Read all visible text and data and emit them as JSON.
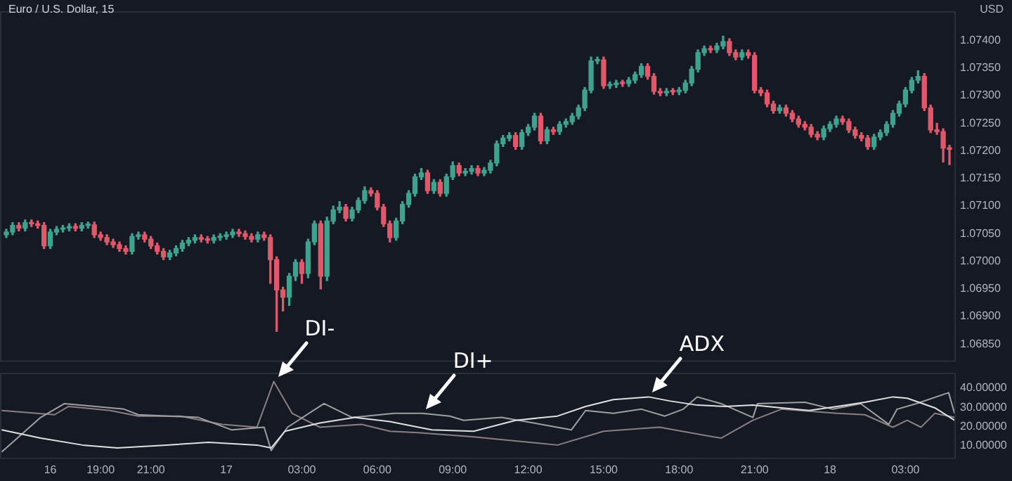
{
  "chart_data": [
    {
      "type": "candlestick",
      "title": "Euro / U.S. Dollar, 15",
      "ylabel": "USD",
      "tick_labels": "y",
      "xlim": [
        "--06-16T15:00",
        "--06-18T05:00"
      ],
      "ylim": [
        1.06818,
        1.07453
      ],
      "yticks": [
        {
          "value": 1.0685,
          "label": "1.06850"
        },
        {
          "value": 1.069,
          "label": "1.06900"
        },
        {
          "value": 1.0695,
          "label": "1.06950"
        },
        {
          "value": 1.07,
          "label": "1.07000"
        },
        {
          "value": 1.0705,
          "label": "1.07050"
        },
        {
          "value": 1.071,
          "label": "1.07100"
        },
        {
          "value": 1.0715,
          "label": "1.07150"
        },
        {
          "value": 1.072,
          "label": "1.07200"
        },
        {
          "value": 1.0725,
          "label": "1.07250"
        },
        {
          "value": 1.073,
          "label": "1.07300"
        },
        {
          "value": 1.0735,
          "label": "1.07350"
        },
        {
          "value": 1.074,
          "label": "1.07400"
        }
      ],
      "x": [
        "--06-16T15:15",
        "--06-16T15:30",
        "--06-16T15:45",
        "--06-16T16:00",
        "--06-16T16:15",
        "--06-16T16:30",
        "--06-16T16:45",
        "--06-16T17:00",
        "--06-16T17:15",
        "--06-16T17:30",
        "--06-16T17:45",
        "--06-16T18:00",
        "--06-16T18:15",
        "--06-16T18:30",
        "--06-16T18:45",
        "--06-16T19:00",
        "--06-16T19:15",
        "--06-16T19:30",
        "--06-16T19:45",
        "--06-16T20:00",
        "--06-16T20:15",
        "--06-16T20:30",
        "--06-16T20:45",
        "--06-16T21:00",
        "--06-16T21:15",
        "--06-16T21:30",
        "--06-16T21:45",
        "--06-16T22:00",
        "--06-16T22:15",
        "--06-16T22:30",
        "--06-16T22:45",
        "--06-16T23:00",
        "--06-16T23:15",
        "--06-16T23:30",
        "--06-16T23:45",
        "--06-17T00:00",
        "--06-17T00:15",
        "--06-17T00:30",
        "--06-17T00:45",
        "--06-17T01:00",
        "--06-17T01:15",
        "--06-17T01:30",
        "--06-17T01:45",
        "--06-17T02:00",
        "--06-17T02:15",
        "--06-17T02:30",
        "--06-17T02:45",
        "--06-17T03:00",
        "--06-17T03:15",
        "--06-17T03:30",
        "--06-17T03:45",
        "--06-17T04:00",
        "--06-17T04:15",
        "--06-17T04:30",
        "--06-17T04:45",
        "--06-17T05:00",
        "--06-17T05:15",
        "--06-17T05:30",
        "--06-17T05:45",
        "--06-17T06:00",
        "--06-17T06:15",
        "--06-17T06:30",
        "--06-17T06:45",
        "--06-17T07:00",
        "--06-17T07:15",
        "--06-17T07:30",
        "--06-17T07:45",
        "--06-17T08:00",
        "--06-17T08:15",
        "--06-17T08:30",
        "--06-17T08:45",
        "--06-17T09:00",
        "--06-17T09:15",
        "--06-17T09:30",
        "--06-17T09:45",
        "--06-17T10:00",
        "--06-17T10:15",
        "--06-17T10:30",
        "--06-17T10:45",
        "--06-17T11:00",
        "--06-17T11:15",
        "--06-17T11:30",
        "--06-17T11:45",
        "--06-17T12:00",
        "--06-17T12:15",
        "--06-17T12:30",
        "--06-17T12:45",
        "--06-17T13:00",
        "--06-17T13:15",
        "--06-17T13:30",
        "--06-17T13:45",
        "--06-17T14:00",
        "--06-17T14:15",
        "--06-17T14:30",
        "--06-17T14:45",
        "--06-17T15:00",
        "--06-17T15:15",
        "--06-17T15:30",
        "--06-17T15:45",
        "--06-17T16:00",
        "--06-17T16:15",
        "--06-17T16:30",
        "--06-17T16:45",
        "--06-17T17:00",
        "--06-17T17:15",
        "--06-17T17:30",
        "--06-17T17:45",
        "--06-17T18:00",
        "--06-17T18:15",
        "--06-17T18:30",
        "--06-17T18:45",
        "--06-17T19:00",
        "--06-17T19:15",
        "--06-17T19:30",
        "--06-17T19:45",
        "--06-17T20:00",
        "--06-17T20:15",
        "--06-17T20:30",
        "--06-17T20:45",
        "--06-17T21:00",
        "--06-17T21:15",
        "--06-17T21:30",
        "--06-17T21:45",
        "--06-17T22:00",
        "--06-17T22:15",
        "--06-17T22:30",
        "--06-17T22:45",
        "--06-17T23:00",
        "--06-17T23:15",
        "--06-17T23:30",
        "--06-17T23:45",
        "--06-18T00:00",
        "--06-18T00:15",
        "--06-18T00:30",
        "--06-18T00:45",
        "--06-18T01:00",
        "--06-18T01:15",
        "--06-18T01:30",
        "--06-18T01:45",
        "--06-18T02:00",
        "--06-18T02:15",
        "--06-18T02:30",
        "--06-18T02:45",
        "--06-18T03:00",
        "--06-18T03:15",
        "--06-18T03:30",
        "--06-18T03:45",
        "--06-18T04:00",
        "--06-18T04:15",
        "--06-18T04:30",
        "--06-18T04:45"
      ],
      "ohlc": [
        [
          1.07048,
          1.07058,
          1.07043,
          1.07053
        ],
        [
          1.07053,
          1.0707,
          1.07048,
          1.07065
        ],
        [
          1.07065,
          1.0707,
          1.07055,
          1.0706
        ],
        [
          1.0706,
          1.07075,
          1.07055,
          1.0707
        ],
        [
          1.0707,
          1.07075,
          1.07063,
          1.07068
        ],
        [
          1.07068,
          1.07073,
          1.0706,
          1.07065
        ],
        [
          1.07065,
          1.0707,
          1.07023,
          1.07028
        ],
        [
          1.07028,
          1.07058,
          1.07023,
          1.07053
        ],
        [
          1.07053,
          1.07063,
          1.07048,
          1.07058
        ],
        [
          1.07058,
          1.07065,
          1.07053,
          1.0706
        ],
        [
          1.0706,
          1.07068,
          1.07055,
          1.07063
        ],
        [
          1.07063,
          1.07068,
          1.07055,
          1.0706
        ],
        [
          1.0706,
          1.0707,
          1.07055,
          1.07065
        ],
        [
          1.07065,
          1.07071,
          1.0706,
          1.07066
        ],
        [
          1.07066,
          1.07071,
          1.07043,
          1.07048
        ],
        [
          1.07048,
          1.07053,
          1.07038,
          1.07043
        ],
        [
          1.07043,
          1.07048,
          1.0703,
          1.07035
        ],
        [
          1.07035,
          1.0704,
          1.07025,
          1.0703
        ],
        [
          1.0703,
          1.07035,
          1.07018,
          1.07023
        ],
        [
          1.07023,
          1.07028,
          1.07013,
          1.07018
        ],
        [
          1.07018,
          1.0705,
          1.07013,
          1.07045
        ],
        [
          1.07045,
          1.07053,
          1.0704,
          1.07048
        ],
        [
          1.07048,
          1.07053,
          1.07035,
          1.0704
        ],
        [
          1.0704,
          1.07045,
          1.07023,
          1.07028
        ],
        [
          1.07028,
          1.07033,
          1.07013,
          1.07018
        ],
        [
          1.07018,
          1.07023,
          1.07003,
          1.07008
        ],
        [
          1.07008,
          1.0702,
          1.07003,
          1.07015
        ],
        [
          1.07015,
          1.07028,
          1.0701,
          1.07023
        ],
        [
          1.07023,
          1.07038,
          1.07018,
          1.07033
        ],
        [
          1.07033,
          1.07043,
          1.07028,
          1.07038
        ],
        [
          1.07038,
          1.07048,
          1.07033,
          1.07043
        ],
        [
          1.07043,
          1.07048,
          1.07035,
          1.0704
        ],
        [
          1.0704,
          1.07045,
          1.07033,
          1.07038
        ],
        [
          1.07038,
          1.07048,
          1.07033,
          1.07043
        ],
        [
          1.07043,
          1.0705,
          1.07038,
          1.07045
        ],
        [
          1.07045,
          1.07053,
          1.0704,
          1.07048
        ],
        [
          1.07048,
          1.07058,
          1.07043,
          1.07053
        ],
        [
          1.07053,
          1.07058,
          1.07045,
          1.0705
        ],
        [
          1.0705,
          1.07055,
          1.0704,
          1.07045
        ],
        [
          1.07045,
          1.0705,
          1.07035,
          1.0704
        ],
        [
          1.0704,
          1.07053,
          1.07035,
          1.07048
        ],
        [
          1.07048,
          1.07053,
          1.07038,
          1.07043
        ],
        [
          1.07043,
          1.07048,
          1.0696,
          1.07003
        ],
        [
          1.07003,
          1.07008,
          1.06873,
          1.06948
        ],
        [
          1.06948,
          1.06953,
          1.0691,
          1.06935
        ],
        [
          1.06935,
          1.06978,
          1.0692,
          1.06973
        ],
        [
          1.06973,
          1.07003,
          1.06965,
          1.06998
        ],
        [
          1.06998,
          1.07003,
          1.0696,
          1.06978
        ],
        [
          1.06978,
          1.0704,
          1.0697,
          1.07035
        ],
        [
          1.07035,
          1.07073,
          1.0703,
          1.07068
        ],
        [
          1.07068,
          1.07073,
          1.0695,
          1.06973
        ],
        [
          1.06973,
          1.0708,
          1.06965,
          1.07073
        ],
        [
          1.07073,
          1.071,
          1.07068,
          1.07093
        ],
        [
          1.07093,
          1.07108,
          1.07088,
          1.07098
        ],
        [
          1.07098,
          1.07103,
          1.07073,
          1.07078
        ],
        [
          1.07078,
          1.07098,
          1.07073,
          1.07093
        ],
        [
          1.07093,
          1.07115,
          1.07088,
          1.0711
        ],
        [
          1.0711,
          1.07135,
          1.07105,
          1.07128
        ],
        [
          1.07128,
          1.07133,
          1.07118,
          1.07123
        ],
        [
          1.07123,
          1.07128,
          1.07093,
          1.07098
        ],
        [
          1.07098,
          1.07103,
          1.07063,
          1.07068
        ],
        [
          1.07068,
          1.07073,
          1.07035,
          1.07043
        ],
        [
          1.07043,
          1.07078,
          1.07038,
          1.07073
        ],
        [
          1.07073,
          1.07108,
          1.07068,
          1.07103
        ],
        [
          1.07103,
          1.07128,
          1.07098,
          1.07123
        ],
        [
          1.07123,
          1.07158,
          1.07118,
          1.07153
        ],
        [
          1.07153,
          1.07168,
          1.07148,
          1.0716
        ],
        [
          1.0716,
          1.07165,
          1.07123,
          1.07128
        ],
        [
          1.07128,
          1.07148,
          1.07123,
          1.07143
        ],
        [
          1.07143,
          1.07148,
          1.07118,
          1.07123
        ],
        [
          1.07123,
          1.07158,
          1.07118,
          1.07153
        ],
        [
          1.07153,
          1.0718,
          1.07148,
          1.07173
        ],
        [
          1.07173,
          1.07178,
          1.07155,
          1.0716
        ],
        [
          1.0716,
          1.07168,
          1.07155,
          1.07163
        ],
        [
          1.07163,
          1.07173,
          1.07158,
          1.07168
        ],
        [
          1.07168,
          1.07173,
          1.07155,
          1.0716
        ],
        [
          1.0716,
          1.0717,
          1.07155,
          1.07165
        ],
        [
          1.07165,
          1.07183,
          1.0716,
          1.07178
        ],
        [
          1.07178,
          1.07218,
          1.07173,
          1.07213
        ],
        [
          1.07213,
          1.07228,
          1.07208,
          1.07223
        ],
        [
          1.07223,
          1.07233,
          1.07218,
          1.07228
        ],
        [
          1.07228,
          1.07233,
          1.07203,
          1.07208
        ],
        [
          1.07208,
          1.07238,
          1.07203,
          1.07233
        ],
        [
          1.07233,
          1.07248,
          1.07228,
          1.07243
        ],
        [
          1.07243,
          1.07268,
          1.07238,
          1.07263
        ],
        [
          1.07263,
          1.07268,
          1.07213,
          1.07218
        ],
        [
          1.07218,
          1.07243,
          1.07213,
          1.07238
        ],
        [
          1.07238,
          1.07243,
          1.0723,
          1.07235
        ],
        [
          1.07235,
          1.07253,
          1.0723,
          1.07248
        ],
        [
          1.07248,
          1.07258,
          1.07243,
          1.07253
        ],
        [
          1.07253,
          1.07268,
          1.07248,
          1.07263
        ],
        [
          1.07263,
          1.07283,
          1.07258,
          1.07278
        ],
        [
          1.07278,
          1.07315,
          1.07273,
          1.0731
        ],
        [
          1.0731,
          1.0737,
          1.07305,
          1.07363
        ],
        [
          1.07363,
          1.0737,
          1.07358,
          1.07365
        ],
        [
          1.07365,
          1.0737,
          1.07313,
          1.07318
        ],
        [
          1.07318,
          1.07325,
          1.07313,
          1.0732
        ],
        [
          1.0732,
          1.07328,
          1.07315,
          1.07323
        ],
        [
          1.07323,
          1.07328,
          1.07317,
          1.07322
        ],
        [
          1.07322,
          1.07333,
          1.07317,
          1.07328
        ],
        [
          1.07328,
          1.07343,
          1.07323,
          1.07338
        ],
        [
          1.07338,
          1.07358,
          1.07333,
          1.07353
        ],
        [
          1.07353,
          1.07358,
          1.0733,
          1.07335
        ],
        [
          1.07335,
          1.0734,
          1.07303,
          1.07308
        ],
        [
          1.07308,
          1.07313,
          1.073,
          1.07305
        ],
        [
          1.07305,
          1.07313,
          1.073,
          1.07308
        ],
        [
          1.07308,
          1.07313,
          1.07302,
          1.07307
        ],
        [
          1.07307,
          1.07315,
          1.07302,
          1.0731
        ],
        [
          1.0731,
          1.07328,
          1.07305,
          1.07323
        ],
        [
          1.07323,
          1.07353,
          1.07318,
          1.07348
        ],
        [
          1.07348,
          1.07383,
          1.07343,
          1.07378
        ],
        [
          1.07378,
          1.0739,
          1.07373,
          1.07385
        ],
        [
          1.07385,
          1.0739,
          1.07378,
          1.07383
        ],
        [
          1.07383,
          1.07395,
          1.07378,
          1.0739
        ],
        [
          1.0739,
          1.07408,
          1.07385,
          1.07398
        ],
        [
          1.07398,
          1.07403,
          1.07373,
          1.07378
        ],
        [
          1.07378,
          1.07383,
          1.07365,
          1.0737
        ],
        [
          1.0737,
          1.07383,
          1.07365,
          1.07378
        ],
        [
          1.07378,
          1.07383,
          1.07368,
          1.07373
        ],
        [
          1.07373,
          1.07378,
          1.07305,
          1.0731
        ],
        [
          1.0731,
          1.07315,
          1.073,
          1.07305
        ],
        [
          1.07305,
          1.0731,
          1.0728,
          1.07285
        ],
        [
          1.07285,
          1.0729,
          1.07268,
          1.07273
        ],
        [
          1.07273,
          1.07283,
          1.07268,
          1.07278
        ],
        [
          1.07278,
          1.07283,
          1.07263,
          1.07268
        ],
        [
          1.07268,
          1.07273,
          1.07253,
          1.07258
        ],
        [
          1.07258,
          1.07263,
          1.07243,
          1.07248
        ],
        [
          1.07248,
          1.07253,
          1.07238,
          1.07243
        ],
        [
          1.07243,
          1.07248,
          1.07225,
          1.0723
        ],
        [
          1.0723,
          1.07235,
          1.0722,
          1.07225
        ],
        [
          1.07225,
          1.07245,
          1.0722,
          1.0724
        ],
        [
          1.0724,
          1.07253,
          1.07235,
          1.07248
        ],
        [
          1.07248,
          1.07263,
          1.07243,
          1.07258
        ],
        [
          1.07258,
          1.07263,
          1.07248,
          1.07253
        ],
        [
          1.07253,
          1.07258,
          1.07233,
          1.07238
        ],
        [
          1.07238,
          1.07243,
          1.07223,
          1.07228
        ],
        [
          1.07228,
          1.07233,
          1.07218,
          1.07223
        ],
        [
          1.07223,
          1.07228,
          1.07203,
          1.07208
        ],
        [
          1.07208,
          1.0723,
          1.07203,
          1.07225
        ],
        [
          1.07225,
          1.07238,
          1.0722,
          1.07233
        ],
        [
          1.07233,
          1.07253,
          1.07228,
          1.07248
        ],
        [
          1.07248,
          1.07273,
          1.07243,
          1.07268
        ],
        [
          1.07268,
          1.0729,
          1.07263,
          1.07285
        ],
        [
          1.07285,
          1.07315,
          1.0728,
          1.0731
        ],
        [
          1.0731,
          1.07333,
          1.07305,
          1.07328
        ],
        [
          1.07328,
          1.07345,
          1.07323,
          1.07335
        ],
        [
          1.07335,
          1.0734,
          1.07273,
          1.07278
        ],
        [
          1.07278,
          1.07283,
          1.07233,
          1.07238
        ],
        [
          1.07238,
          1.0725,
          1.0723,
          1.07235
        ],
        [
          1.07235,
          1.0724,
          1.0718,
          1.07205
        ],
        [
          1.07205,
          1.0721,
          1.07175,
          1.07203
        ]
      ],
      "colors": [
        "#3fa28f",
        "#3fa28f",
        "#e0596a",
        "#3fa28f",
        "#e0596a",
        "#e0596a",
        "#e0596a",
        "#3fa28f",
        "#3fa28f",
        "#3fa28f",
        "#3fa28f",
        "#e0596a",
        "#3fa28f",
        "#3fa28f",
        "#e0596a",
        "#e0596a",
        "#e0596a",
        "#e0596a",
        "#e0596a",
        "#e0596a",
        "#3fa28f",
        "#3fa28f",
        "#e0596a",
        "#e0596a",
        "#e0596a",
        "#e0596a",
        "#3fa28f",
        "#3fa28f",
        "#3fa28f",
        "#3fa28f",
        "#3fa28f",
        "#e0596a",
        "#e0596a",
        "#3fa28f",
        "#3fa28f",
        "#3fa28f",
        "#3fa28f",
        "#e0596a",
        "#e0596a",
        "#e0596a",
        "#3fa28f",
        "#e0596a",
        "#e0596a",
        "#e0596a",
        "#e0596a",
        "#3fa28f",
        "#3fa28f",
        "#e0596a",
        "#3fa28f",
        "#3fa28f",
        "#e0596a",
        "#3fa28f",
        "#3fa28f",
        "#3fa28f",
        "#e0596a",
        "#3fa28f",
        "#3fa28f",
        "#3fa28f",
        "#e0596a",
        "#e0596a",
        "#e0596a",
        "#e0596a",
        "#3fa28f",
        "#3fa28f",
        "#3fa28f",
        "#3fa28f",
        "#3fa28f",
        "#e0596a",
        "#3fa28f",
        "#e0596a",
        "#3fa28f",
        "#3fa28f",
        "#e0596a",
        "#3fa28f",
        "#3fa28f",
        "#e0596a",
        "#3fa28f",
        "#3fa28f",
        "#3fa28f",
        "#3fa28f",
        "#3fa28f",
        "#e0596a",
        "#3fa28f",
        "#3fa28f",
        "#3fa28f",
        "#e0596a",
        "#3fa28f",
        "#e0596a",
        "#3fa28f",
        "#3fa28f",
        "#3fa28f",
        "#3fa28f",
        "#3fa28f",
        "#3fa28f",
        "#3fa28f",
        "#e0596a",
        "#3fa28f",
        "#3fa28f",
        "#e0596a",
        "#3fa28f",
        "#3fa28f",
        "#3fa28f",
        "#e0596a",
        "#e0596a",
        "#e0596a",
        "#3fa28f",
        "#e0596a",
        "#3fa28f",
        "#3fa28f",
        "#3fa28f",
        "#3fa28f",
        "#3fa28f",
        "#e0596a",
        "#3fa28f",
        "#3fa28f",
        "#e0596a",
        "#e0596a",
        "#3fa28f",
        "#e0596a",
        "#e0596a",
        "#e0596a",
        "#e0596a",
        "#e0596a",
        "#3fa28f",
        "#e0596a",
        "#e0596a",
        "#e0596a",
        "#e0596a",
        "#e0596a",
        "#e0596a",
        "#3fa28f",
        "#3fa28f",
        "#3fa28f",
        "#e0596a",
        "#e0596a",
        "#e0596a",
        "#e0596a",
        "#e0596a",
        "#3fa28f",
        "#3fa28f",
        "#3fa28f",
        "#3fa28f",
        "#3fa28f",
        "#3fa28f",
        "#3fa28f",
        "#3fa28f",
        "#e0596a",
        "#e0596a",
        "#e0596a",
        "#e0596a",
        "#e0596a"
      ]
    },
    {
      "type": "line",
      "xlim": [
        "--06-16T15:00",
        "--06-18T05:00"
      ],
      "ylim": [
        3,
        48
      ],
      "marker": "none",
      "xticks": [
        {
          "value": "--06-16T17:00",
          "label": "16"
        },
        {
          "value": "--06-16T19:00",
          "label": "19:00"
        },
        {
          "value": "--06-16T21:00",
          "label": "21:00"
        },
        {
          "value": "--06-17T00:00",
          "label": "17"
        },
        {
          "value": "--06-17T03:00",
          "label": "03:00"
        },
        {
          "value": "--06-17T06:00",
          "label": "06:00"
        },
        {
          "value": "--06-17T09:00",
          "label": "09:00"
        },
        {
          "value": "--06-17T12:00",
          "label": "12:00"
        },
        {
          "value": "--06-17T15:00",
          "label": "15:00"
        },
        {
          "value": "--06-17T18:00",
          "label": "18:00"
        },
        {
          "value": "--06-17T21:00",
          "label": "21:00"
        },
        {
          "value": "--06-18T00:00",
          "label": "18"
        },
        {
          "value": "--06-18T03:00",
          "label": "03:00"
        }
      ],
      "yticks": [
        {
          "value": 10,
          "label": "10.00000"
        },
        {
          "value": 20,
          "label": "20.00000"
        },
        {
          "value": 30,
          "label": "30.00000"
        },
        {
          "value": 40,
          "label": "40.00000"
        }
      ],
      "series": [
        {
          "color": "#e0e0e0",
          "x": [
            "--06-16T15:04",
            "--06-16T16:37",
            "--06-16T18:17",
            "--06-16T19:40",
            "--06-16T21:37",
            "--06-16T23:17",
            "--06-17T01:13",
            "--06-17T01:47",
            "--06-17T02:20",
            "--06-17T03:43",
            "--06-17T05:07",
            "--06-17T06:30",
            "--06-17T08:10",
            "--06-17T09:50",
            "--06-17T11:30",
            "--06-17T13:10",
            "--06-17T14:17",
            "--06-17T15:23",
            "--06-17T16:47",
            "--06-17T17:37",
            "--06-17T18:43",
            "--06-17T19:50",
            "--06-17T20:56",
            "--06-17T22:04",
            "--06-17T23:10",
            "--06-18T00:17",
            "--06-18T01:23",
            "--06-18T02:30",
            "--06-18T03:04",
            "--06-18T04:10",
            "--06-18T04:57"
          ],
          "values": [
            18.2,
            13.9,
            10.3,
            8.8,
            10.3,
            11.7,
            10.3,
            8.8,
            17.5,
            21.8,
            24.7,
            22.5,
            18.2,
            17.5,
            23.2,
            25.4,
            30.4,
            34.0,
            35.4,
            33.3,
            31.1,
            30.4,
            31.1,
            29.7,
            28.3,
            30.4,
            32.6,
            35.4,
            34.7,
            29.7,
            23.2
          ]
        },
        {
          "color": "#a0a0a0",
          "x": [
            "--06-16T15:04",
            "--06-16T16:37",
            "--06-16T17:34",
            "--06-16T19:56",
            "--06-16T20:30",
            "--06-16T22:53",
            "--06-17T00:13",
            "--06-17T01:30",
            "--06-17T01:47",
            "--06-17T02:26",
            "--06-17T03:53",
            "--06-17T05:00",
            "--06-17T06:40",
            "--06-17T07:47",
            "--06-17T08:53",
            "--06-17T09:26",
            "--06-17T10:56",
            "--06-17T12:13",
            "--06-17T13:43",
            "--06-17T14:17",
            "--06-17T15:23",
            "--06-17T16:30",
            "--06-17T17:26",
            "--06-17T18:10",
            "--06-17T18:43",
            "--06-17T19:40",
            "--06-17T20:56",
            "--06-17T21:07",
            "--06-17T23:00",
            "--06-18T00:07",
            "--06-18T01:13",
            "--06-18T02:20",
            "--06-18T02:40",
            "--06-18T03:26",
            "--06-18T04:43",
            "--06-18T04:57"
          ],
          "values": [
            6.7,
            24.7,
            31.9,
            29.0,
            26.1,
            24.7,
            18.2,
            19.6,
            7.4,
            19.6,
            31.9,
            24.7,
            26.8,
            26.8,
            25.4,
            23.2,
            24.7,
            21.8,
            18.2,
            28.3,
            26.8,
            29.0,
            25.4,
            29.0,
            35.4,
            31.9,
            24.7,
            31.9,
            32.6,
            29.0,
            31.9,
            21.1,
            29.0,
            31.9,
            37.6,
            26.8
          ]
        },
        {
          "color": "#8c7f82",
          "x": [
            "--06-16T15:04",
            "--06-16T17:10",
            "--06-16T17:43",
            "--06-16T19:23",
            "--06-16T20:30",
            "--06-16T22:10",
            "--06-16T23:50",
            "--06-17T01:13",
            "--06-17T01:53",
            "--06-17T02:37",
            "--06-17T03:43",
            "--06-17T05:23",
            "--06-17T06:30",
            "--06-17T07:37",
            "--06-17T09:50",
            "--06-17T13:10",
            "--06-17T15:00",
            "--06-17T17:13",
            "--06-17T19:40",
            "--06-17T20:56",
            "--06-17T22:04",
            "--06-18T00:17",
            "--06-18T01:23",
            "--06-18T02:30",
            "--06-18T03:04",
            "--06-18T03:37",
            "--06-18T04:10",
            "--06-18T04:57"
          ],
          "values": [
            28.3,
            26.1,
            30.4,
            28.3,
            25.4,
            25.4,
            21.1,
            19.6,
            43.4,
            26.8,
            19.6,
            21.1,
            17.5,
            16.8,
            14.6,
            10.3,
            17.5,
            19.6,
            13.9,
            23.2,
            29.0,
            26.8,
            26.1,
            19.6,
            23.2,
            19.6,
            26.8,
            24.7
          ]
        }
      ],
      "annotations": [
        {
          "text": "DI-",
          "x": "--06-17T01:53",
          "y": 43.4
        },
        {
          "text": "DI+",
          "x": "--06-17T07:47",
          "y": 26.8
        },
        {
          "text": "ADX",
          "x": "--06-17T16:47",
          "y": 35.4
        }
      ]
    }
  ]
}
